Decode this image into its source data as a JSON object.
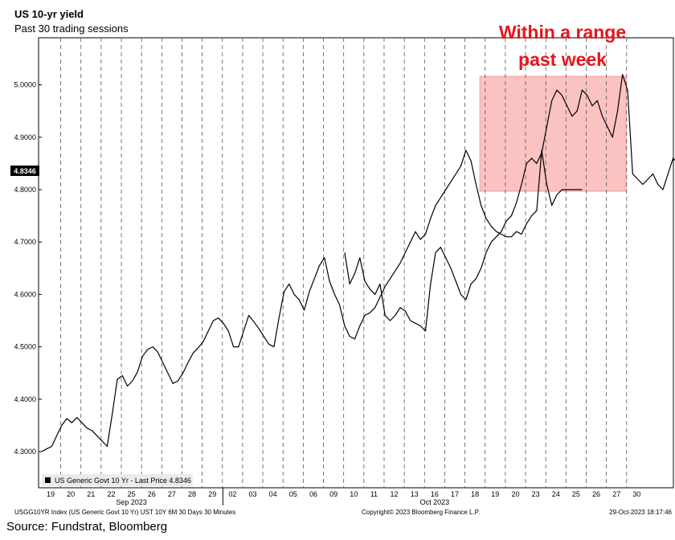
{
  "header": {
    "title": "US 10-yr yield",
    "subtitle": "Past 30 trading sessions"
  },
  "source": "Source: Fundstrat, Bloomberg",
  "footer": {
    "left": "USGG10YR Index (US Generic Govt 10 Yr) UST 10Y 6M 30 Days 30 Minutes",
    "center": "Copyright© 2023 Bloomberg Finance L.P.",
    "right": "29-Oct-2023 18:17:46"
  },
  "colors": {
    "line": "#000000",
    "highlight": "#fbc2c2",
    "annotation": "#e8151c",
    "grid": "#555555"
  },
  "chart_data": {
    "type": "line",
    "ylim": [
      4.27,
      5.08
    ],
    "y_ticks": [
      "4.3000",
      "4.4000",
      "4.5000",
      "4.6000",
      "4.7000",
      "4.8000",
      "4.9000",
      "5.0000"
    ],
    "x_tick_labels": [
      "19",
      "20",
      "21",
      "22",
      "25",
      "26",
      "27",
      "28",
      "29",
      "02",
      "03",
      "04",
      "05",
      "06",
      "09",
      "10",
      "11",
      "12",
      "13",
      "16",
      "17",
      "18",
      "19",
      "20",
      "23",
      "24",
      "25",
      "26",
      "27",
      "30"
    ],
    "month_labels": [
      {
        "label": "Sep 2023",
        "at": "25"
      },
      {
        "label": "Oct 2023",
        "at": "16"
      }
    ],
    "legend": "US Generic Govt 10 Yr - Last Price 4.8346",
    "last_price": "4.8346",
    "annotation": {
      "line1": "Within a range",
      "line2": "past week"
    },
    "highlight_range": {
      "from": "18",
      "to": "27",
      "y_low": 4.797,
      "y_high": 5.016
    },
    "series": [
      {
        "segments": [
          {
            "start": "19",
            "values": [
              4.3,
              4.305,
              4.31,
              4.33,
              4.35,
              4.363,
              4.355,
              4.365,
              4.355,
              4.345,
              4.34,
              4.33,
              4.32,
              4.31,
              4.372,
              4.438,
              4.445,
              4.425,
              4.435,
              4.452,
              4.482,
              4.495,
              4.5,
              4.49,
              4.47,
              4.45,
              4.43,
              4.435,
              4.45,
              4.47,
              4.488,
              4.498,
              4.51,
              4.53,
              4.55,
              4.555,
              4.545,
              4.53,
              4.5,
              4.5,
              4.53,
              4.56,
              4.548,
              4.535,
              4.52,
              4.505,
              4.5,
              4.555,
              4.605,
              4.62,
              4.6,
              4.59,
              4.57,
              4.605,
              4.63,
              4.655,
              4.67,
              4.625,
              4.6,
              4.58,
              4.54,
              4.52,
              4.515,
              4.54,
              4.56,
              4.565,
              4.575,
              4.595,
              4.615,
              4.63,
              4.645,
              4.66,
              4.68,
              4.7,
              4.72,
              4.705,
              4.715,
              4.745,
              4.77,
              4.785,
              4.8,
              4.815,
              4.83,
              4.845,
              4.875,
              4.855,
              4.81,
              4.77,
              4.745,
              4.73,
              4.72,
              4.715,
              4.71,
              4.71,
              4.72,
              4.715,
              4.735,
              4.75,
              4.76,
              4.875,
              4.81,
              4.77,
              4.79,
              4.8,
              4.8,
              4.8,
              4.8,
              4.8
            ]
          },
          {
            "start": "10",
            "values": [
              4.68,
              4.62,
              4.64,
              4.67,
              4.625,
              4.61,
              4.6,
              4.62,
              4.56,
              4.55,
              4.56,
              4.575,
              4.568,
              4.55,
              4.545,
              4.54,
              4.53,
              4.62,
              4.68,
              4.69,
              4.67,
              4.65,
              4.625,
              4.6,
              4.59,
              4.62,
              4.63,
              4.65,
              4.68,
              4.7,
              4.71,
              4.72,
              4.74,
              4.75,
              4.775,
              4.81,
              4.85,
              4.86,
              4.85,
              4.87,
              4.92,
              4.97,
              4.99,
              4.98,
              4.96,
              4.94,
              4.95,
              4.99,
              4.98,
              4.96,
              4.97,
              4.94,
              4.92,
              4.9,
              4.95,
              5.02,
              4.99,
              4.83,
              4.82,
              4.81,
              4.82,
              4.83,
              4.81,
              4.8,
              4.83,
              4.86,
              4.85,
              4.86,
              4.91,
              4.95,
              4.985,
              4.97,
              4.96,
              4.96,
              4.86,
              4.84,
              4.85,
              4.86,
              4.88,
              4.87,
              4.84,
              4.835
            ]
          }
        ]
      }
    ]
  }
}
